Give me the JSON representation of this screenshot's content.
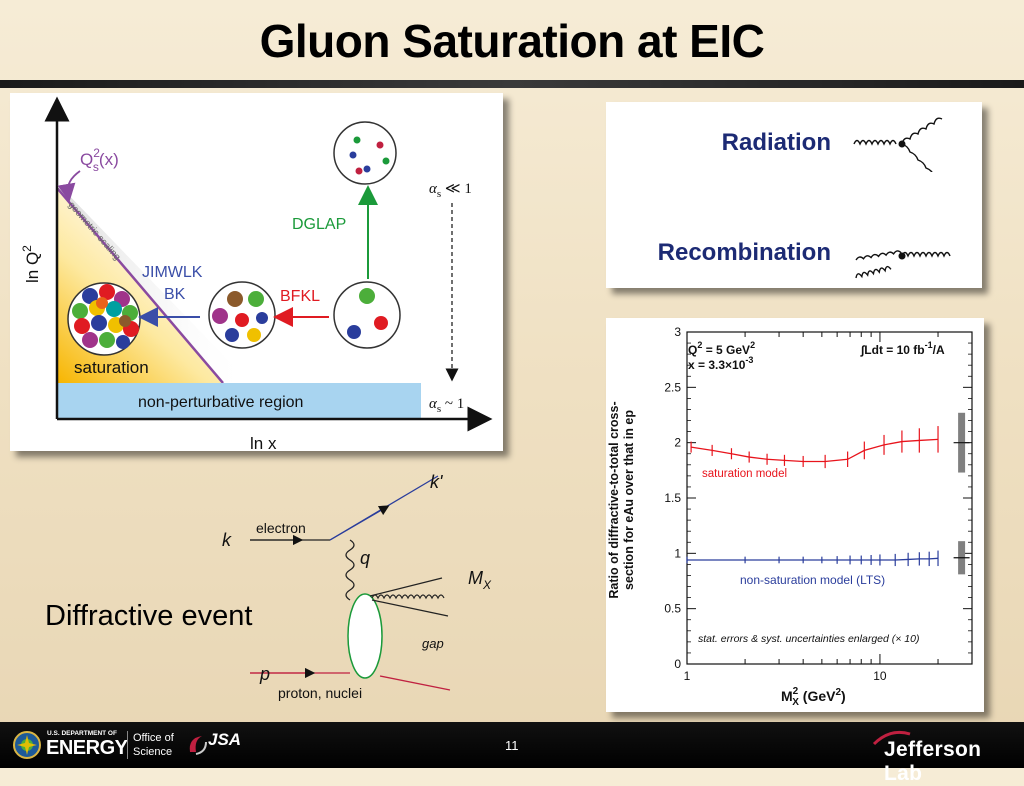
{
  "slide": {
    "title": "Gluon Saturation at EIC",
    "page_number": "11"
  },
  "phase_diagram": {
    "y_axis_label": "ln Q",
    "y_axis_sup": "2",
    "x_axis_label": "ln x",
    "qs_label_main": "Q",
    "qs_label_sup": "2",
    "qs_label_sub": "s",
    "qs_label_arg": "(x)",
    "geometric_scaling": "geometric scaling",
    "dglap": "DGLAP",
    "alpha_top": "α",
    "alpha_top_sub": "s",
    "alpha_top_rel": " ≪ 1",
    "alpha_bottom": "α",
    "alpha_bottom_sub": "s",
    "alpha_bottom_rel": " ~ 1",
    "jimwlk": "JIMWLK",
    "bk": "BK",
    "bfkl": "BFKL",
    "saturation": "saturation",
    "non_perturbative": "non-perturbative region"
  },
  "rad_recomb": {
    "radiation": "Radiation",
    "recombination": "Recombination"
  },
  "feynman": {
    "k": "k",
    "k_prime": "k'",
    "electron": "electron",
    "q": "q",
    "mx": "M",
    "mx_sub": "X",
    "gap": "gap",
    "p": "p",
    "proton_nuclei": "proton, nuclei",
    "caption": "Diffractive event"
  },
  "chart_data": {
    "type": "line",
    "xscale": "log",
    "xlim": [
      1,
      30
    ],
    "ylim": [
      0,
      3
    ],
    "xlabel_main": "M",
    "xlabel_sub": "X",
    "xlabel_sup": "2",
    "xlabel_unit": " (GeV",
    "xlabel_unit_sup": "2",
    "xlabel_close": ")",
    "ylabel_line1": "Ratio of diffractive-to-total cross-",
    "ylabel_line2": "section for eAu over that in ep",
    "yticks": [
      0,
      0.5,
      1,
      1.5,
      2,
      2.5,
      3
    ],
    "ytick_labels": [
      "0",
      "0.5",
      "1",
      "1.5",
      "2",
      "2.5",
      "3"
    ],
    "xticks": [
      1,
      10
    ],
    "xtick_labels": [
      "1",
      "10"
    ],
    "annotation_q2": "Q",
    "annotation_q2_sup": "2",
    "annotation_q2_rest": " = 5 GeV",
    "annotation_q2_unit_sup": "2",
    "annotation_x": "x = 3.3×10",
    "annotation_x_sup": "-3",
    "annotation_lumi": "∫Ldt = 10 fb",
    "annotation_lumi_sup": "-1",
    "annotation_lumi_rest": "/A",
    "note": "stat. errors & syst. uncertainties enlarged (× 10)",
    "series": [
      {
        "name": "saturation model",
        "color": "#e8141c",
        "x": [
          1.05,
          1.35,
          1.7,
          2.1,
          2.6,
          3.2,
          4.0,
          5.2,
          6.8,
          8.3,
          10.5,
          13.0,
          16.0,
          20.0
        ],
        "y": [
          1.96,
          1.93,
          1.9,
          1.87,
          1.85,
          1.84,
          1.83,
          1.83,
          1.85,
          1.93,
          1.98,
          2.01,
          2.02,
          2.03
        ],
        "err": [
          0.05,
          0.05,
          0.05,
          0.05,
          0.05,
          0.05,
          0.05,
          0.06,
          0.07,
          0.08,
          0.09,
          0.1,
          0.11,
          0.12
        ]
      },
      {
        "name": "non-saturation model (LTS)",
        "color": "#2a3d9c",
        "x": [
          1.0,
          2.0,
          3.0,
          4.0,
          5.0,
          6.0,
          7.0,
          8.0,
          9.0,
          10.0,
          12.0,
          14.0,
          16.0,
          18.0,
          20.0
        ],
        "y": [
          0.94,
          0.94,
          0.94,
          0.94,
          0.94,
          0.94,
          0.94,
          0.94,
          0.94,
          0.94,
          0.94,
          0.945,
          0.95,
          0.95,
          0.955
        ],
        "err": [
          0.03,
          0.03,
          0.03,
          0.03,
          0.03,
          0.035,
          0.04,
          0.04,
          0.045,
          0.05,
          0.055,
          0.06,
          0.06,
          0.065,
          0.07
        ]
      }
    ],
    "syst_bars": [
      {
        "y": 2.0,
        "half": 0.27,
        "color": "#808080"
      },
      {
        "y": 0.96,
        "half": 0.15,
        "color": "#808080"
      }
    ]
  },
  "footer": {
    "doe_small": "U.S. DEPARTMENT OF",
    "energy": "ENERGY",
    "office_line1": "Office of",
    "office_line2": "Science",
    "jsa": "JSA",
    "jlab": "Jefferson Lab"
  }
}
